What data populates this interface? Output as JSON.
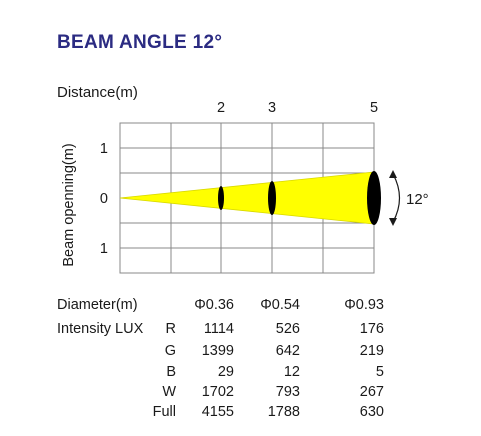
{
  "title": "BEAM ANGLE 12°",
  "distance_label": "Distance(m)",
  "beam_label": "Beam openning(m)",
  "angle_label": "12°",
  "distance_ticks": [
    "2",
    "3",
    "5"
  ],
  "opening_ticks": [
    "1",
    "0",
    "1"
  ],
  "colors": {
    "title": "#2b2b82",
    "beam": "#ffff00",
    "grid": "#888888"
  },
  "table": {
    "diameter_label": "Diameter(m)",
    "diameters": [
      "Φ0.36",
      "Φ0.54",
      "Φ0.93"
    ],
    "intensity_label": "Intensity LUX",
    "rows": [
      {
        "key": "R",
        "values": [
          "1114",
          "526",
          "176"
        ]
      },
      {
        "key": "G",
        "values": [
          "1399",
          "642",
          "219"
        ]
      },
      {
        "key": "B",
        "values": [
          "29",
          "12",
          "5"
        ]
      },
      {
        "key": "W",
        "values": [
          "1702",
          "793",
          "267"
        ]
      },
      {
        "key": "Full",
        "values": [
          "4155",
          "1788",
          "630"
        ]
      }
    ]
  }
}
